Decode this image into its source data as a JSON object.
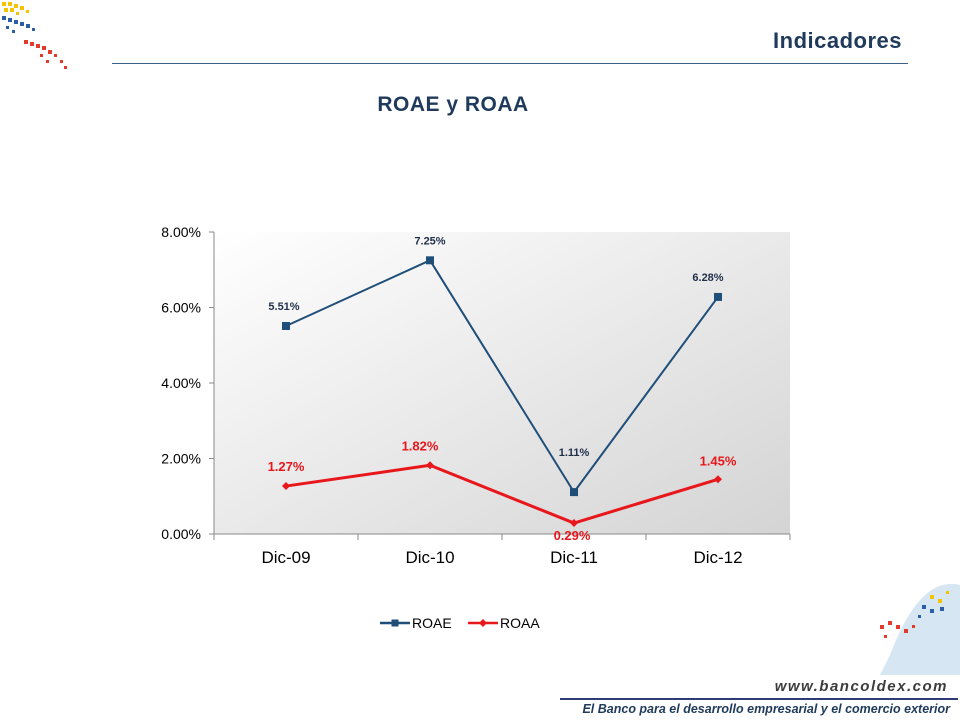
{
  "header": {
    "title": "Indicadores"
  },
  "slide": {
    "title": "ROAE y ROAA"
  },
  "footer": {
    "url": "www.bancoldex.com",
    "tagline": "El Banco para el desarrollo empresarial y el comercio exterior"
  },
  "colors": {
    "roae": "#1f4e79",
    "roaa": "#e8171b",
    "title": "#1f3a5a"
  },
  "chart_data": {
    "type": "line",
    "categories": [
      "Dic-09",
      "Dic-10",
      "Dic-11",
      "Dic-12"
    ],
    "series": [
      {
        "name": "ROAE",
        "values": [
          5.51,
          7.25,
          1.11,
          6.28
        ],
        "labels": [
          "5.51%",
          "7.25%",
          "1.11%",
          "6.28%"
        ],
        "marker": "square"
      },
      {
        "name": "ROAA",
        "values": [
          1.27,
          1.82,
          0.29,
          1.45
        ],
        "labels": [
          "1.27%",
          "1.82%",
          "0.29%",
          "1.45%"
        ],
        "marker": "diamond"
      }
    ],
    "y_ticks": [
      "0.00%",
      "2.00%",
      "4.00%",
      "6.00%",
      "8.00%"
    ],
    "ylim": [
      0,
      8
    ],
    "grid": false,
    "legend": "bottom"
  }
}
